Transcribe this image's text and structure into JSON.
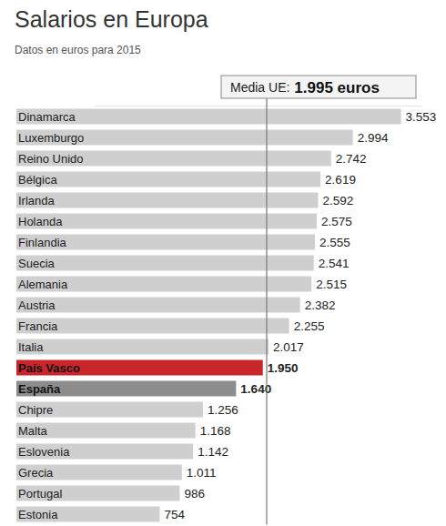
{
  "chart_data": {
    "type": "bar",
    "orientation": "horizontal",
    "title": "Salarios en Europa",
    "subtitle": "Datos en euros para 2015",
    "categories": [
      "Dinamarca",
      "Luxemburgo",
      "Reino Unido",
      "Bélgica",
      "Irlanda",
      "Holanda",
      "Finlandia",
      "Suecia",
      "Alemania",
      "Austria",
      "Francia",
      "Italia",
      "País Vasco",
      "España",
      "Chipre",
      "Malta",
      "Eslovenia",
      "Grecia",
      "Portugal",
      "Estonia"
    ],
    "values": [
      3553,
      2994,
      2742,
      2619,
      2592,
      2575,
      2555,
      2541,
      2515,
      2382,
      2255,
      2017,
      1950,
      1640,
      1256,
      1168,
      1142,
      1011,
      986,
      754
    ],
    "value_labels": [
      "3.553",
      "2.994",
      "2.742",
      "2.619",
      "2.592",
      "2.575",
      "2.555",
      "2.541",
      "2.515",
      "2.382",
      "2.255",
      "2.017",
      "1.950",
      "1.640",
      "1.256",
      "1.168",
      "1.142",
      "1.011",
      "986",
      "754"
    ],
    "colors": [
      "#cfcfcf",
      "#cfcfcf",
      "#cfcfcf",
      "#cfcfcf",
      "#cfcfcf",
      "#cfcfcf",
      "#cfcfcf",
      "#cfcfcf",
      "#cfcfcf",
      "#cfcfcf",
      "#cfcfcf",
      "#cfcfcf",
      "#c8262b",
      "#8c8c8c",
      "#cfcfcf",
      "#cfcfcf",
      "#cfcfcf",
      "#cfcfcf",
      "#cfcfcf",
      "#cfcfcf"
    ],
    "reference_line": {
      "value": 1995,
      "label": "Media UE:",
      "value_label": "1.995 euros"
    },
    "xlim": [
      0,
      3800
    ],
    "data_labels": true,
    "tick_labels": false,
    "grid": false
  }
}
